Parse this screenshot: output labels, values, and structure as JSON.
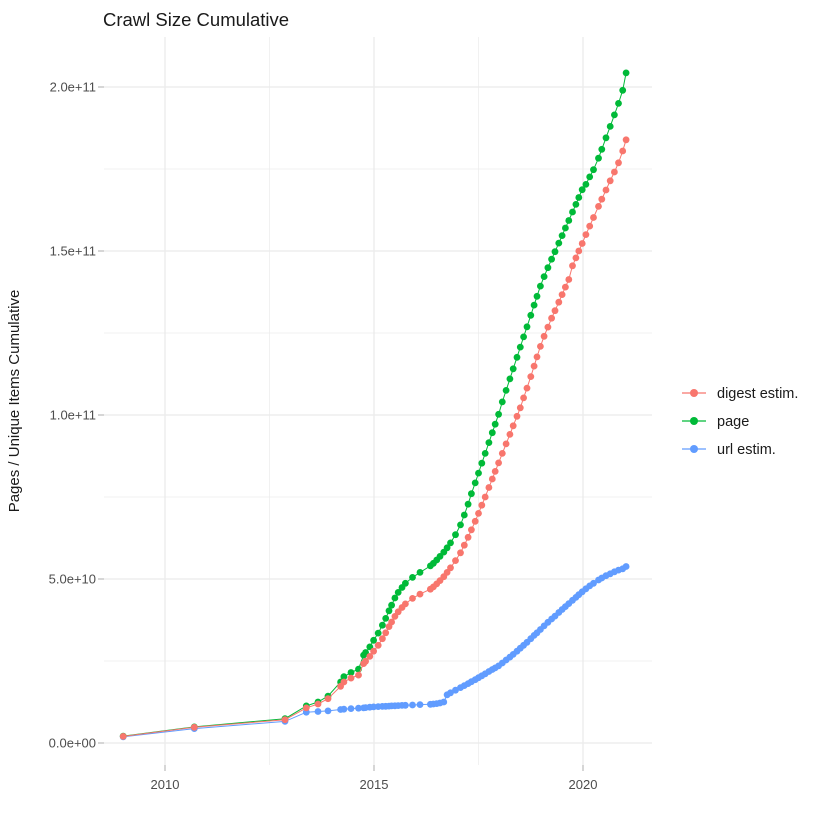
{
  "title": "Crawl Size Cumulative",
  "axes": {
    "y": {
      "label": "Pages / Unique Items Cumulative",
      "tick_labels": [
        "0.0e+00",
        "5.0e+10",
        "1.0e+11",
        "1.5e+11",
        "2.0e+11"
      ],
      "tick_values_e9": [
        0,
        50,
        100,
        150,
        200
      ],
      "minor_values_e9": [
        25,
        75,
        125,
        175
      ]
    },
    "x": {
      "tick_labels": [
        "2010",
        "2015",
        "2020"
      ],
      "tick_values": [
        2010,
        2015,
        2020
      ],
      "minor_values": [
        2012.5,
        2017.5
      ]
    }
  },
  "legend": {
    "position": "right",
    "items": [
      {
        "label": "digest estim.",
        "color": "#F8766D"
      },
      {
        "label": "page",
        "color": "#00BA38"
      },
      {
        "label": "url estim.",
        "color": "#619CFF"
      }
    ]
  },
  "colors": {
    "background": "#FFFFFF",
    "grid": "#EBEBEB",
    "tick": "#B3B3B3",
    "axis_text": "#4D4D4D",
    "text": "#1A1A1A"
  },
  "chart_data": {
    "type": "scatter",
    "title": "Crawl Size Cumulative",
    "xlabel": "",
    "ylabel": "Pages / Unique Items Cumulative",
    "unit": "pages, value numbers in billions (1e9)",
    "xlim": [
      2008.55,
      2021.65
    ],
    "ylim_e9": [
      -7,
      215
    ],
    "grid": true,
    "legend_position": "right",
    "x_years": [
      2009.0,
      2010.7,
      2012.87,
      2013.38,
      2013.66,
      2013.9,
      2014.2,
      2014.28,
      2014.45,
      2014.63,
      2014.75,
      2014.8,
      2014.9,
      2014.99,
      2015.1,
      2015.2,
      2015.28,
      2015.36,
      2015.42,
      2015.5,
      2015.58,
      2015.67,
      2015.75,
      2015.92,
      2016.1,
      2016.35,
      2016.42,
      2016.5,
      2016.58,
      2016.67,
      2016.75,
      2016.83,
      2016.95,
      2017.07,
      2017.16,
      2017.25,
      2017.33,
      2017.42,
      2017.5,
      2017.58,
      2017.66,
      2017.75,
      2017.83,
      2017.9,
      2017.98,
      2018.07,
      2018.16,
      2018.25,
      2018.33,
      2018.42,
      2018.5,
      2018.58,
      2018.66,
      2018.75,
      2018.83,
      2018.9,
      2018.98,
      2019.07,
      2019.16,
      2019.25,
      2019.33,
      2019.42,
      2019.5,
      2019.58,
      2019.66,
      2019.75,
      2019.83,
      2019.9,
      2019.98,
      2020.07,
      2020.16,
      2020.25,
      2020.37,
      2020.45,
      2020.55,
      2020.65,
      2020.75,
      2020.85,
      2020.95,
      2021.03
    ],
    "series": [
      {
        "name": "digest estim.",
        "color": "#F8766D",
        "values_e9": [
          2.0,
          4.8,
          7.1,
          10.7,
          11.9,
          13.5,
          17.3,
          18.6,
          19.8,
          20.7,
          24.2,
          24.9,
          26.4,
          28.0,
          29.8,
          31.8,
          33.6,
          35.5,
          36.9,
          38.6,
          40.0,
          41.3,
          42.4,
          44.1,
          45.4,
          46.9,
          47.6,
          48.5,
          49.5,
          50.7,
          52.0,
          53.4,
          55.6,
          58.0,
          60.3,
          62.7,
          65.0,
          67.6,
          70.0,
          72.5,
          75.0,
          77.9,
          80.5,
          82.8,
          85.4,
          88.3,
          91.2,
          94.1,
          96.7,
          99.6,
          102.2,
          105.2,
          108.2,
          111.7,
          114.9,
          117.7,
          120.9,
          124.0,
          126.8,
          129.5,
          131.8,
          134.4,
          136.7,
          139.0,
          141.3,
          145.5,
          147.9,
          150.0,
          152.3,
          155.0,
          157.6,
          160.2,
          163.6,
          165.8,
          168.6,
          171.4,
          174.1,
          176.9,
          180.5,
          183.9
        ]
      },
      {
        "name": "page",
        "color": "#00BA38",
        "values_e9": [
          2.1,
          4.9,
          7.4,
          11.3,
          12.5,
          14.3,
          18.6,
          20.2,
          21.5,
          22.5,
          26.8,
          27.6,
          29.3,
          31.3,
          33.5,
          35.9,
          38.0,
          40.3,
          42.0,
          44.2,
          45.9,
          47.4,
          48.7,
          50.5,
          52.0,
          54.0,
          54.8,
          55.8,
          56.9,
          58.2,
          59.5,
          61.0,
          63.5,
          66.5,
          69.5,
          72.8,
          76.0,
          79.3,
          82.3,
          85.3,
          88.3,
          91.6,
          94.6,
          97.2,
          100.2,
          104.0,
          107.5,
          111.0,
          114.1,
          117.6,
          120.7,
          123.8,
          126.9,
          130.4,
          133.5,
          136.2,
          139.3,
          142.2,
          144.9,
          147.5,
          149.8,
          152.4,
          154.7,
          157.0,
          159.3,
          161.9,
          164.2,
          166.3,
          168.7,
          170.3,
          172.6,
          174.8,
          178.3,
          181.0,
          184.5,
          188.0,
          191.5,
          195.0,
          199.0,
          204.3
        ]
      },
      {
        "name": "url estim.",
        "color": "#619CFF",
        "values_e9": [
          1.9,
          4.4,
          6.6,
          9.4,
          9.6,
          9.8,
          10.2,
          10.3,
          10.5,
          10.6,
          10.7,
          10.8,
          10.9,
          11.0,
          11.1,
          11.15,
          11.2,
          11.25,
          11.3,
          11.35,
          11.4,
          11.45,
          11.5,
          11.6,
          11.7,
          11.8,
          11.9,
          12.0,
          12.2,
          12.5,
          14.7,
          15.3,
          16.1,
          16.9,
          17.5,
          18.1,
          18.7,
          19.3,
          19.9,
          20.5,
          21.1,
          21.8,
          22.4,
          22.9,
          23.5,
          24.4,
          25.3,
          26.2,
          27.0,
          28.0,
          28.9,
          29.8,
          30.7,
          31.8,
          32.8,
          33.6,
          34.6,
          35.7,
          36.8,
          37.8,
          38.7,
          39.8,
          40.7,
          41.6,
          42.5,
          43.5,
          44.4,
          45.2,
          46.1,
          47.0,
          47.9,
          48.7,
          49.7,
          50.3,
          51.0,
          51.6,
          52.2,
          52.7,
          53.1,
          53.8
        ]
      }
    ]
  }
}
